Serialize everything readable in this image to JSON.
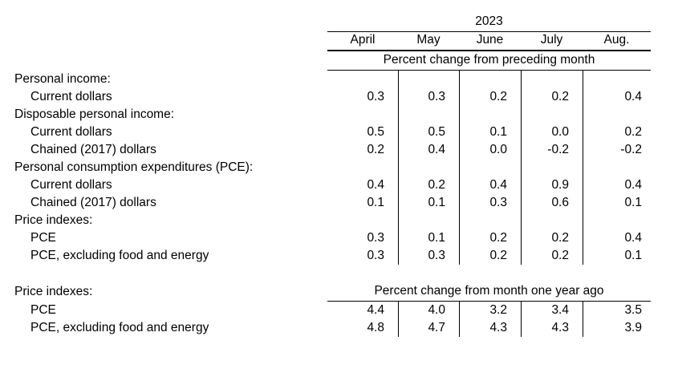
{
  "page": {
    "background_color": "#ffffff",
    "text_color": "#000000",
    "line_color": "#000000"
  },
  "table": {
    "year": "2023",
    "months": [
      "April",
      "May",
      "June",
      "July",
      "Aug."
    ],
    "section_monthly": {
      "unit_label": "Percent change from preceding month",
      "rows": [
        {
          "label": "Personal income:",
          "indent": false,
          "values": [
            "",
            "",
            "",
            "",
            ""
          ]
        },
        {
          "label": "Current dollars",
          "indent": true,
          "values": [
            "0.3",
            "0.3",
            "0.2",
            "0.2",
            "0.4"
          ]
        },
        {
          "label": "Disposable personal income:",
          "indent": false,
          "values": [
            "",
            "",
            "",
            "",
            ""
          ]
        },
        {
          "label": "Current dollars",
          "indent": true,
          "values": [
            "0.5",
            "0.5",
            "0.1",
            "0.0",
            "0.2"
          ]
        },
        {
          "label": "Chained (2017) dollars",
          "indent": true,
          "values": [
            "0.2",
            "0.4",
            "0.0",
            "-0.2",
            "-0.2"
          ]
        },
        {
          "label": "Personal consumption expenditures (PCE):",
          "indent": false,
          "values": [
            "",
            "",
            "",
            "",
            ""
          ]
        },
        {
          "label": "Current dollars",
          "indent": true,
          "values": [
            "0.4",
            "0.2",
            "0.4",
            "0.9",
            "0.4"
          ]
        },
        {
          "label": "Chained (2017) dollars",
          "indent": true,
          "values": [
            "0.1",
            "0.1",
            "0.3",
            "0.6",
            "0.1"
          ]
        },
        {
          "label": "Price indexes:",
          "indent": false,
          "values": [
            "",
            "",
            "",
            "",
            ""
          ]
        },
        {
          "label": "PCE",
          "indent": true,
          "values": [
            "0.3",
            "0.1",
            "0.2",
            "0.2",
            "0.4"
          ]
        },
        {
          "label": "PCE, excluding food and energy",
          "indent": true,
          "values": [
            "0.3",
            "0.3",
            "0.2",
            "0.2",
            "0.1"
          ]
        }
      ]
    },
    "section_yearly": {
      "heading_label": "Price indexes:",
      "unit_label": "Percent change from month one year ago",
      "rows": [
        {
          "label": "PCE",
          "indent": true,
          "values": [
            "4.4",
            "4.0",
            "3.2",
            "3.4",
            "3.5"
          ]
        },
        {
          "label": "PCE, excluding food and energy",
          "indent": true,
          "values": [
            "4.8",
            "4.7",
            "4.3",
            "4.3",
            "3.9"
          ]
        }
      ]
    }
  }
}
